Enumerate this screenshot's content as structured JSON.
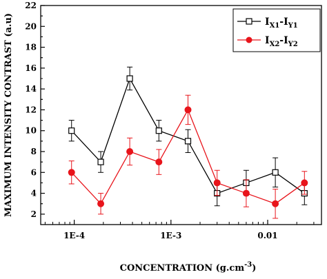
{
  "chart_data": {
    "type": "line",
    "title": "",
    "xlabel": "CONCENTRATION (g.cm",
    "xlabel_sup": "-3",
    "xlabel_end": ")",
    "ylabel": "MAXIMUM INTENSITY CONTRAST (a.u)",
    "x_scale": "log",
    "xlim": [
      4.5e-05,
      0.036
    ],
    "ylim": [
      1,
      22
    ],
    "x_ticks": [
      {
        "value": 0.0001,
        "label": "1E-4"
      },
      {
        "value": 0.001,
        "label": "1E-3"
      },
      {
        "value": 0.01,
        "label": "0.01"
      }
    ],
    "y_ticks": [
      2,
      4,
      6,
      8,
      10,
      12,
      14,
      16,
      18,
      20,
      22
    ],
    "grid": false,
    "legend_position": "top-right",
    "x": [
      9.38e-05,
      0.000188,
      0.000375,
      0.00075,
      0.0015,
      0.003,
      0.006,
      0.012,
      0.024
    ],
    "series": [
      {
        "name": "IX1-IY1",
        "label_parts": [
          "I",
          "X1",
          "-I",
          "Y1"
        ],
        "color": "#000000",
        "marker": "open-square",
        "values": [
          10,
          7,
          15,
          10,
          9,
          4,
          5,
          6,
          4
        ],
        "errors": [
          1.0,
          1.0,
          1.1,
          1.0,
          1.1,
          1.2,
          1.2,
          1.4,
          1.1
        ]
      },
      {
        "name": "IX2-IY2",
        "label_parts": [
          "I",
          "X2",
          "-I",
          "Y2"
        ],
        "color": "#e8141b",
        "marker": "filled-circle",
        "values": [
          6,
          3,
          8,
          7,
          12,
          5,
          4,
          3,
          5
        ],
        "errors": [
          1.1,
          1.0,
          1.3,
          1.2,
          1.4,
          1.2,
          1.3,
          1.4,
          1.1
        ]
      }
    ]
  }
}
